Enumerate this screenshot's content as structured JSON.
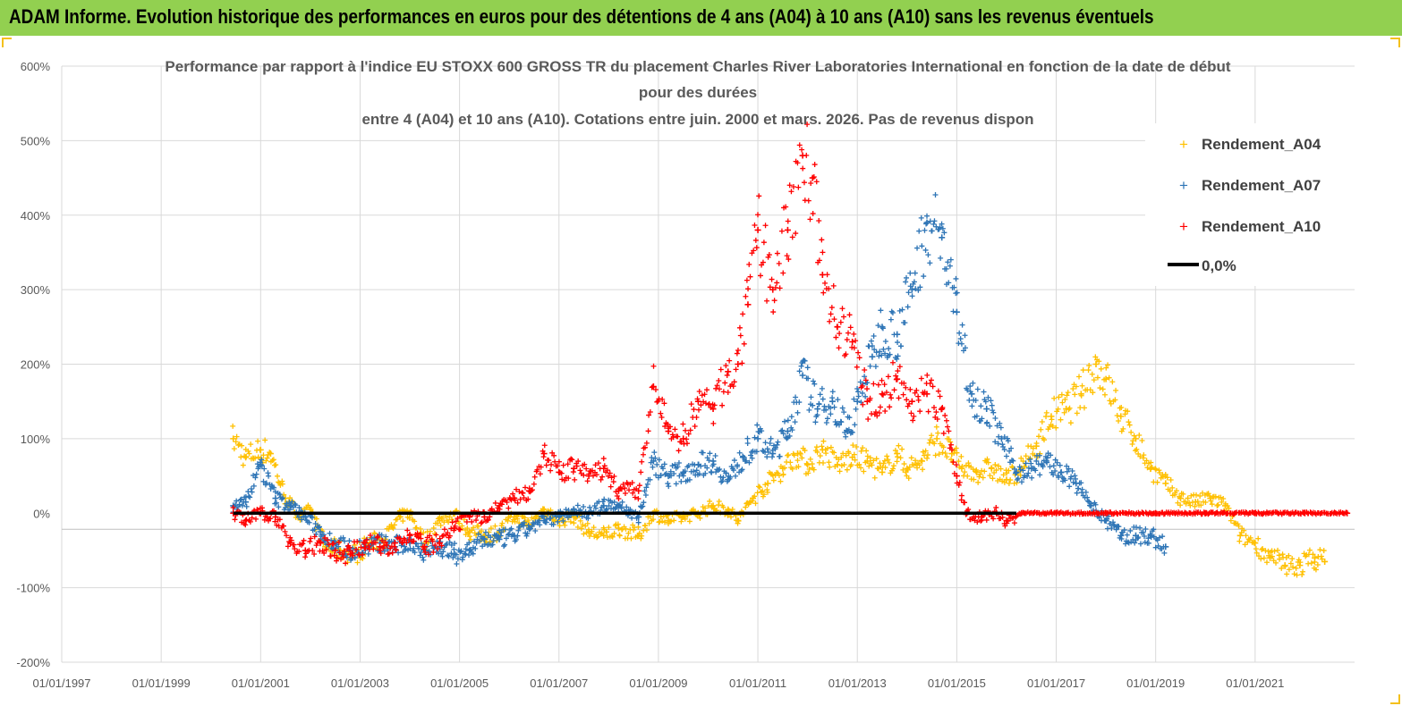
{
  "banner": {
    "title": "ADAM Informe. Evolution historique des performances en euros pour des détentions de 4 ans (A04) à 10 ans (A10) sans les revenus éventuels",
    "background": "#92d050"
  },
  "chart_data": {
    "type": "scatter",
    "title_lines": [
      "Performance par rapport à l'indice EU STOXX 600 GROSS TR  du placement Charles River Laboratories International en fonction de la date de début",
      "pour des durées",
      "entre 4 (A04) et 10 ans (A10). Cotations entre juin. 2000 et mars. 2026. Pas de revenus dispon"
    ],
    "xlabel": "",
    "ylabel": "",
    "x_range": [
      1997.0,
      2023.0
    ],
    "ylim": [
      -200,
      600
    ],
    "x_ticks": [
      1997,
      1999,
      2001,
      2003,
      2005,
      2007,
      2009,
      2011,
      2013,
      2015,
      2017,
      2019,
      2021
    ],
    "x_tick_labels": [
      "01/01/1997",
      "01/01/1999",
      "01/01/2001",
      "01/01/2003",
      "01/01/2005",
      "01/01/2007",
      "01/01/2009",
      "01/01/2011",
      "01/01/2013",
      "01/01/2015",
      "01/01/2017",
      "01/01/2019",
      "01/01/2021"
    ],
    "y_ticks": [
      600,
      500,
      400,
      300,
      200,
      100,
      0,
      -100,
      -200
    ],
    "y_tick_labels": [
      "600%",
      "500%",
      "400%",
      "300%",
      "200%",
      "100%",
      "0%",
      "-100%",
      "-200%"
    ],
    "grid": true,
    "legend_position": "top-right",
    "series": [
      {
        "name": "Rendement_A04",
        "color": "#ffc000",
        "marker": "+",
        "points": [
          [
            2000.45,
            100
          ],
          [
            2000.7,
            75
          ],
          [
            2001.0,
            85
          ],
          [
            2001.2,
            80
          ],
          [
            2001.5,
            20
          ],
          [
            2001.8,
            -5
          ],
          [
            2002.0,
            5
          ],
          [
            2002.3,
            -45
          ],
          [
            2002.6,
            -50
          ],
          [
            2002.9,
            -55
          ],
          [
            2003.2,
            -40
          ],
          [
            2003.5,
            -35
          ],
          [
            2003.8,
            -5
          ],
          [
            2004.0,
            0
          ],
          [
            2004.3,
            -40
          ],
          [
            2004.6,
            -10
          ],
          [
            2004.9,
            0
          ],
          [
            2005.2,
            -25
          ],
          [
            2005.5,
            -30
          ],
          [
            2005.8,
            -25
          ],
          [
            2006.1,
            -5
          ],
          [
            2006.4,
            -15
          ],
          [
            2006.7,
            5
          ],
          [
            2007.0,
            -10
          ],
          [
            2007.3,
            -5
          ],
          [
            2007.6,
            -25
          ],
          [
            2007.9,
            -30
          ],
          [
            2008.2,
            -20
          ],
          [
            2008.6,
            -30
          ],
          [
            2008.9,
            0
          ],
          [
            2009.2,
            -10
          ],
          [
            2009.5,
            -5
          ],
          [
            2009.8,
            0
          ],
          [
            2010.1,
            10
          ],
          [
            2010.4,
            5
          ],
          [
            2010.6,
            -10
          ],
          [
            2010.9,
            20
          ],
          [
            2011.2,
            40
          ],
          [
            2011.5,
            60
          ],
          [
            2011.8,
            80
          ],
          [
            2012.0,
            65
          ],
          [
            2012.3,
            85
          ],
          [
            2012.6,
            65
          ],
          [
            2012.9,
            75
          ],
          [
            2013.2,
            70
          ],
          [
            2013.5,
            55
          ],
          [
            2013.8,
            80
          ],
          [
            2014.0,
            60
          ],
          [
            2014.3,
            70
          ],
          [
            2014.6,
            100
          ],
          [
            2014.9,
            80
          ],
          [
            2015.1,
            60
          ],
          [
            2015.4,
            55
          ],
          [
            2015.7,
            60
          ],
          [
            2016.0,
            45
          ],
          [
            2016.3,
            60
          ],
          [
            2016.6,
            90
          ],
          [
            2016.9,
            130
          ],
          [
            2017.2,
            140
          ],
          [
            2017.5,
            160
          ],
          [
            2017.8,
            200
          ],
          [
            2018.0,
            180
          ],
          [
            2018.3,
            130
          ],
          [
            2018.6,
            100
          ],
          [
            2018.9,
            60
          ],
          [
            2019.2,
            40
          ],
          [
            2019.5,
            20
          ],
          [
            2019.8,
            15
          ],
          [
            2020.1,
            20
          ],
          [
            2020.4,
            10
          ],
          [
            2020.7,
            -30
          ],
          [
            2021.0,
            -40
          ],
          [
            2021.3,
            -60
          ],
          [
            2021.6,
            -70
          ],
          [
            2021.9,
            -70
          ],
          [
            2022.2,
            -60
          ],
          [
            2022.4,
            -65
          ]
        ]
      },
      {
        "name": "Rendement_A07",
        "color": "#2e75b6",
        "marker": "+",
        "points": [
          [
            2000.45,
            10
          ],
          [
            2000.7,
            15
          ],
          [
            2001.0,
            65
          ],
          [
            2001.3,
            20
          ],
          [
            2001.6,
            10
          ],
          [
            2001.9,
            -5
          ],
          [
            2002.2,
            -25
          ],
          [
            2002.5,
            -40
          ],
          [
            2002.8,
            -50
          ],
          [
            2003.1,
            -45
          ],
          [
            2003.4,
            -40
          ],
          [
            2003.7,
            -45
          ],
          [
            2004.0,
            -40
          ],
          [
            2004.3,
            -50
          ],
          [
            2004.6,
            -45
          ],
          [
            2004.9,
            -55
          ],
          [
            2005.2,
            -50
          ],
          [
            2005.5,
            -35
          ],
          [
            2005.8,
            -35
          ],
          [
            2006.1,
            -30
          ],
          [
            2006.4,
            -20
          ],
          [
            2006.7,
            -10
          ],
          [
            2007.0,
            -5
          ],
          [
            2007.3,
            5
          ],
          [
            2007.6,
            0
          ],
          [
            2007.9,
            10
          ],
          [
            2008.2,
            10
          ],
          [
            2008.6,
            -5
          ],
          [
            2008.9,
            70
          ],
          [
            2009.2,
            50
          ],
          [
            2009.5,
            55
          ],
          [
            2009.8,
            65
          ],
          [
            2010.1,
            70
          ],
          [
            2010.4,
            45
          ],
          [
            2010.7,
            75
          ],
          [
            2011.0,
            100
          ],
          [
            2011.3,
            80
          ],
          [
            2011.6,
            110
          ],
          [
            2011.9,
            185
          ],
          [
            2012.2,
            140
          ],
          [
            2012.5,
            150
          ],
          [
            2012.8,
            110
          ],
          [
            2013.0,
            150
          ],
          [
            2013.3,
            210
          ],
          [
            2013.5,
            250
          ],
          [
            2013.8,
            240
          ],
          [
            2014.1,
            300
          ],
          [
            2014.4,
            390
          ],
          [
            2014.7,
            370
          ],
          [
            2015.0,
            270
          ],
          [
            2015.3,
            160
          ],
          [
            2015.6,
            140
          ],
          [
            2015.9,
            100
          ],
          [
            2016.2,
            55
          ],
          [
            2016.5,
            60
          ],
          [
            2016.8,
            70
          ],
          [
            2017.1,
            55
          ],
          [
            2017.4,
            40
          ],
          [
            2017.7,
            10
          ],
          [
            2018.0,
            -10
          ],
          [
            2018.3,
            -30
          ],
          [
            2018.6,
            -30
          ],
          [
            2018.9,
            -30
          ],
          [
            2019.2,
            -45
          ]
        ]
      },
      {
        "name": "Rendement_A10",
        "color": "#ff0000",
        "marker": "+",
        "points": [
          [
            2000.45,
            0
          ],
          [
            2000.7,
            -10
          ],
          [
            2001.0,
            0
          ],
          [
            2001.3,
            -5
          ],
          [
            2001.6,
            -40
          ],
          [
            2001.9,
            -50
          ],
          [
            2002.2,
            -40
          ],
          [
            2002.5,
            -50
          ],
          [
            2002.8,
            -55
          ],
          [
            2003.1,
            -40
          ],
          [
            2003.4,
            -45
          ],
          [
            2003.7,
            -40
          ],
          [
            2004.0,
            -30
          ],
          [
            2004.3,
            -45
          ],
          [
            2004.6,
            -40
          ],
          [
            2004.9,
            -20
          ],
          [
            2005.2,
            -5
          ],
          [
            2005.5,
            -5
          ],
          [
            2005.8,
            10
          ],
          [
            2006.1,
            20
          ],
          [
            2006.4,
            30
          ],
          [
            2006.7,
            80
          ],
          [
            2007.0,
            55
          ],
          [
            2007.3,
            60
          ],
          [
            2007.6,
            50
          ],
          [
            2007.9,
            60
          ],
          [
            2008.2,
            30
          ],
          [
            2008.6,
            30
          ],
          [
            2008.9,
            170
          ],
          [
            2009.2,
            110
          ],
          [
            2009.5,
            100
          ],
          [
            2009.8,
            150
          ],
          [
            2010.1,
            140
          ],
          [
            2010.4,
            190
          ],
          [
            2010.6,
            200
          ],
          [
            2010.8,
            280
          ],
          [
            2011.0,
            380
          ],
          [
            2011.3,
            300
          ],
          [
            2011.6,
            380
          ],
          [
            2011.9,
            480
          ],
          [
            2012.1,
            450
          ],
          [
            2012.3,
            320
          ],
          [
            2012.6,
            250
          ],
          [
            2012.9,
            230
          ],
          [
            2013.2,
            150
          ],
          [
            2013.5,
            160
          ],
          [
            2013.8,
            180
          ],
          [
            2014.1,
            150
          ],
          [
            2014.4,
            160
          ],
          [
            2014.7,
            140
          ],
          [
            2015.0,
            50
          ],
          [
            2015.2,
            0
          ],
          [
            2015.5,
            -5
          ],
          [
            2015.8,
            0
          ],
          [
            2016.0,
            -10
          ],
          [
            2016.3,
            0
          ],
          [
            2017.0,
            0
          ],
          [
            2018.0,
            0
          ],
          [
            2019.0,
            0
          ],
          [
            2020.0,
            0
          ],
          [
            2021.0,
            0
          ],
          [
            2022.0,
            0
          ],
          [
            2022.85,
            0
          ]
        ]
      },
      {
        "name": "0,0%",
        "color": "#000000",
        "marker": "line",
        "points": [
          [
            2000.45,
            0
          ],
          [
            2016.2,
            0
          ]
        ]
      }
    ]
  }
}
